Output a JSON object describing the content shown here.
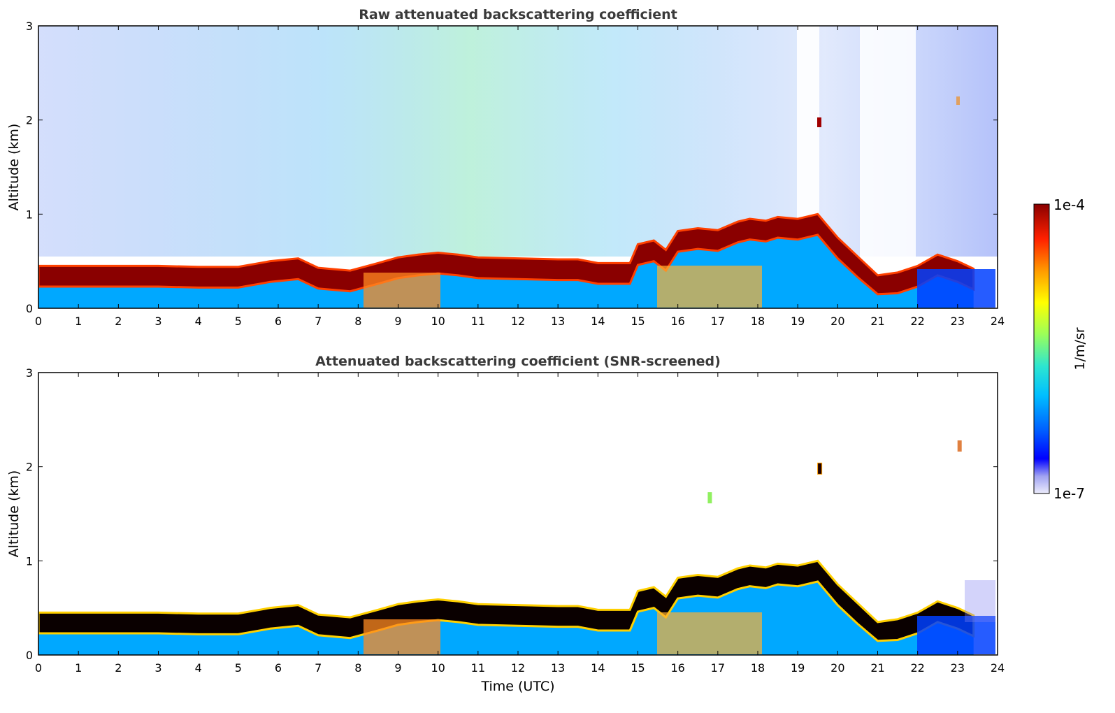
{
  "chart_data": [
    {
      "type": "heatmap",
      "title": "Raw attenuated backscattering coefficient",
      "xlabel": "",
      "ylabel": "Altitude (km)",
      "xlim": [
        0,
        24
      ],
      "ylim": [
        0,
        3
      ],
      "xticks": [
        "0",
        "1",
        "2",
        "3",
        "4",
        "5",
        "6",
        "7",
        "8",
        "9",
        "10",
        "11",
        "12",
        "13",
        "14",
        "15",
        "16",
        "17",
        "18",
        "19",
        "20",
        "21",
        "22",
        "23",
        "24"
      ],
      "yticks": [
        "0",
        "1",
        "2",
        "3"
      ],
      "boundary_layer_top_km": [
        [
          0,
          0.45
        ],
        [
          1,
          0.45
        ],
        [
          2,
          0.45
        ],
        [
          3,
          0.45
        ],
        [
          4,
          0.44
        ],
        [
          5,
          0.44
        ],
        [
          5.8,
          0.5
        ],
        [
          6.5,
          0.53
        ],
        [
          7,
          0.43
        ],
        [
          7.8,
          0.4
        ],
        [
          8.5,
          0.48
        ],
        [
          9,
          0.54
        ],
        [
          9.5,
          0.57
        ],
        [
          10,
          0.59
        ],
        [
          10.5,
          0.57
        ],
        [
          11,
          0.54
        ],
        [
          12,
          0.53
        ],
        [
          13,
          0.52
        ],
        [
          13.5,
          0.52
        ],
        [
          14,
          0.48
        ],
        [
          14.8,
          0.48
        ],
        [
          15,
          0.68
        ],
        [
          15.4,
          0.72
        ],
        [
          15.7,
          0.62
        ],
        [
          16,
          0.82
        ],
        [
          16.5,
          0.85
        ],
        [
          17,
          0.83
        ],
        [
          17.5,
          0.92
        ],
        [
          17.8,
          0.95
        ],
        [
          18.2,
          0.93
        ],
        [
          18.5,
          0.97
        ],
        [
          19,
          0.95
        ],
        [
          19.5,
          1.0
        ],
        [
          20,
          0.75
        ],
        [
          20.5,
          0.55
        ],
        [
          21,
          0.35
        ],
        [
          21.5,
          0.38
        ],
        [
          22,
          0.45
        ],
        [
          22.5,
          0.57
        ],
        [
          23,
          0.5
        ],
        [
          23.4,
          0.42
        ]
      ]
    },
    {
      "type": "heatmap",
      "title": "Attenuated backscattering coefficient (SNR-screened)",
      "xlabel": "Time (UTC)",
      "ylabel": "Altitude (km)",
      "xlim": [
        0,
        24
      ],
      "ylim": [
        0,
        3
      ],
      "xticks": [
        "0",
        "1",
        "2",
        "3",
        "4",
        "5",
        "6",
        "7",
        "8",
        "9",
        "10",
        "11",
        "12",
        "13",
        "14",
        "15",
        "16",
        "17",
        "18",
        "19",
        "20",
        "21",
        "22",
        "23",
        "24"
      ],
      "yticks": [
        "0",
        "1",
        "2",
        "3"
      ],
      "isolated_features": [
        {
          "time": 19.55,
          "altitude_km": 1.98
        },
        {
          "time": 23.05,
          "altitude_km": 2.22
        },
        {
          "time": 16.8,
          "altitude_km": 1.67
        }
      ]
    }
  ],
  "colorbar": {
    "label": "1/m/sr",
    "max_label": "1e-4",
    "min_label": "1e-7",
    "scale": "log",
    "colors": [
      "#e8e8fa",
      "#9fa0f2",
      "#0000ff",
      "#0066ff",
      "#00c8ff",
      "#2de6d0",
      "#9bff5a",
      "#ffff00",
      "#ff9a00",
      "#ff2000",
      "#8a0000"
    ]
  }
}
